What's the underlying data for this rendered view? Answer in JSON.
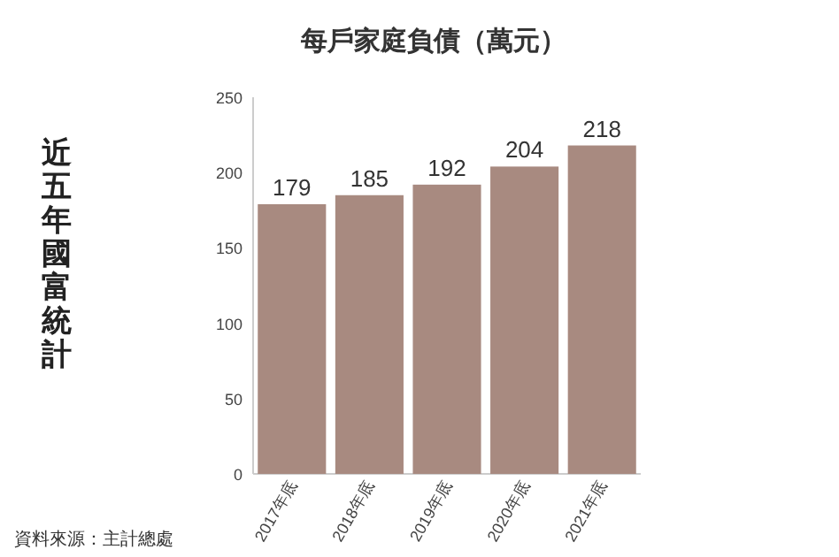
{
  "chart_data": {
    "type": "bar",
    "title": "每戶家庭負債（萬元）",
    "subtitle": "近五年國富統計",
    "categories": [
      "2017年底",
      "2018年底",
      "2019年底",
      "2020年底",
      "2021年底"
    ],
    "values": [
      179,
      185,
      192,
      204,
      218
    ],
    "color": "#a88a80",
    "ylim": [
      0,
      250
    ],
    "yticks": [
      0,
      50,
      100,
      150,
      200,
      250
    ],
    "grid": false,
    "data_labels": true,
    "annotations": [
      "資料來源：主計總處"
    ]
  }
}
